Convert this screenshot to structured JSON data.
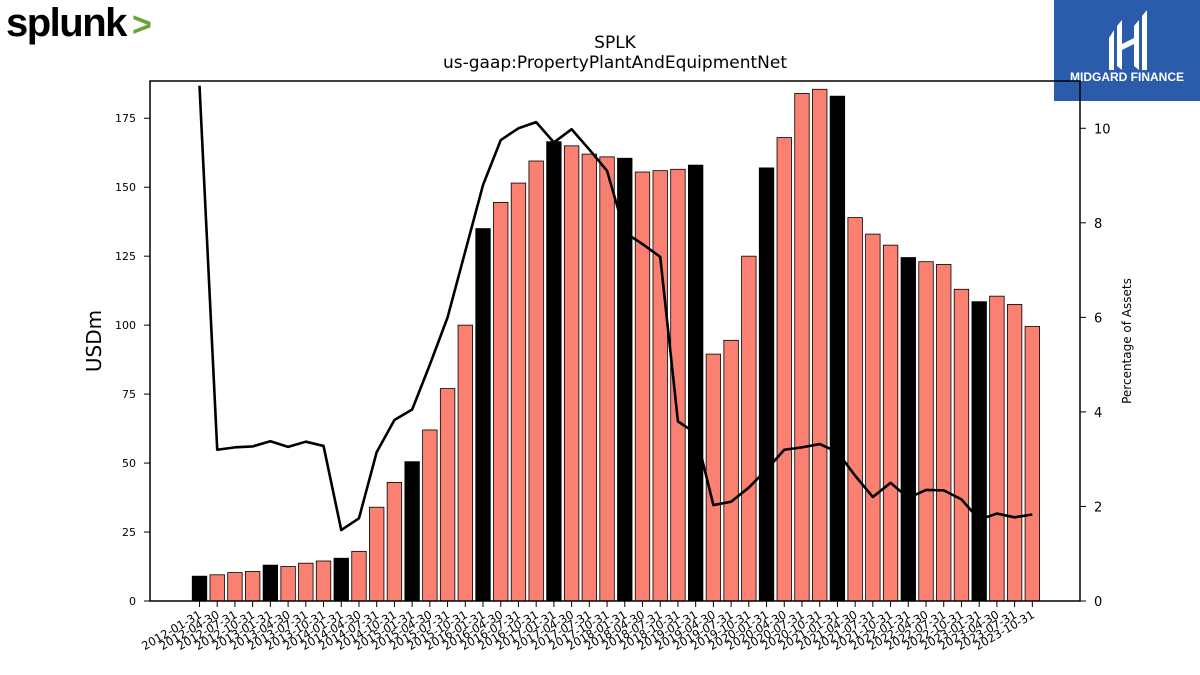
{
  "brand": {
    "name": "splunk",
    "mark": ">"
  },
  "partner": {
    "name": "MIDGARD FINANCE"
  },
  "colors": {
    "bar_normal": "#fa8072",
    "bar_highlight": "#000000",
    "line": "#000000",
    "brand_green": "#65a637",
    "partner_bg": "#2b5cac"
  },
  "chart_data": {
    "type": "bar",
    "title": "SPLK",
    "subtitle": "us-gaap:PropertyPlantAndEquipmentNet",
    "ylabel": "USDm",
    "y2label": "Percentage of Assets",
    "ylim": [
      0,
      188.5
    ],
    "y2lim": [
      0,
      11
    ],
    "yticks": [
      0,
      25,
      50,
      75,
      100,
      125,
      150,
      175
    ],
    "y2ticks": [
      0,
      2,
      4,
      6,
      8,
      10
    ],
    "categories": [
      "2012-01-31",
      "2012-04-30",
      "2012-07-31",
      "2012-10-31",
      "2013-01-31",
      "2013-04-30",
      "2013-07-31",
      "2013-10-31",
      "2014-01-31",
      "2014-04-30",
      "2014-07-31",
      "2014-10-31",
      "2015-01-31",
      "2015-04-30",
      "2015-07-31",
      "2015-10-31",
      "2016-01-31",
      "2016-04-30",
      "2016-07-31",
      "2016-10-31",
      "2017-01-31",
      "2017-04-30",
      "2017-07-31",
      "2017-10-31",
      "2018-01-31",
      "2018-04-30",
      "2018-07-31",
      "2018-10-31",
      "2019-01-31",
      "2019-04-30",
      "2019-07-31",
      "2019-10-31",
      "2020-01-31",
      "2020-04-30",
      "2020-07-31",
      "2020-10-31",
      "2021-01-31",
      "2021-04-30",
      "2021-07-31",
      "2021-10-31",
      "2022-01-31",
      "2022-04-30",
      "2022-07-31",
      "2022-10-31",
      "2023-01-31",
      "2023-04-30",
      "2023-07-31",
      "2023-10-31"
    ],
    "highlight": [
      true,
      false,
      false,
      false,
      true,
      false,
      false,
      false,
      true,
      false,
      false,
      false,
      true,
      false,
      false,
      false,
      true,
      false,
      false,
      false,
      true,
      false,
      false,
      false,
      true,
      false,
      false,
      false,
      true,
      false,
      false,
      false,
      true,
      false,
      false,
      false,
      true,
      false,
      false,
      false,
      true,
      false,
      false,
      false,
      true,
      false,
      false,
      false
    ],
    "series": [
      {
        "values": [
          9,
          9.5,
          10.3,
          10.7,
          13,
          12.5,
          13.7,
          14.5,
          15.5,
          18,
          34,
          43,
          50.5,
          62,
          77,
          100,
          135,
          144.5,
          151.5,
          159.5,
          166.5,
          165,
          162,
          161,
          160.5,
          155.5,
          156,
          156.5,
          158,
          89.5,
          94.5,
          125,
          157,
          168,
          184,
          185.5,
          183,
          139,
          133,
          129,
          124.5,
          123,
          122,
          113,
          108.5,
          110.5,
          107.5,
          99.5
        ]
      }
    ],
    "line": {
      "values": [
        10.9,
        3.2,
        3.25,
        3.27,
        3.38,
        3.26,
        3.37,
        3.28,
        1.5,
        1.75,
        3.15,
        3.83,
        4.05,
        5.0,
        6.0,
        7.4,
        8.8,
        9.75,
        10.0,
        10.13,
        9.7,
        9.98,
        9.55,
        9.1,
        7.8,
        7.55,
        7.28,
        3.8,
        3.55,
        2.03,
        2.1,
        2.4,
        2.78,
        3.2,
        3.25,
        3.32,
        3.15,
        2.65,
        2.2,
        2.5,
        2.18,
        2.35,
        2.34,
        2.15,
        1.72,
        1.85,
        1.77,
        1.83
      ]
    }
  }
}
